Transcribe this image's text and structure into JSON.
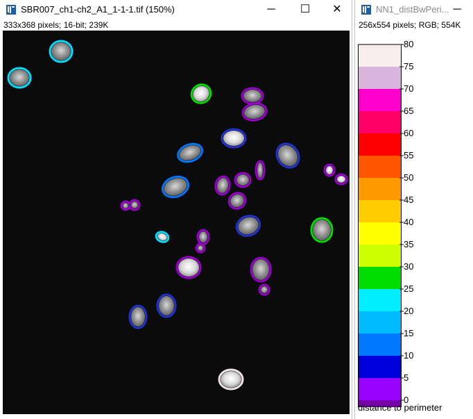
{
  "window_main": {
    "title": "SBR007_ch1-ch2_A1_1-1-1.tif (150%)",
    "info": "333x368 pixels; 16-bit; 239K",
    "controls": {
      "minimize": "─",
      "maximize": "☐",
      "close": "✕"
    },
    "icon": "imagej-icon"
  },
  "window_scale": {
    "title": "NN1_distBwPeri...",
    "info": "256x554 pixels; RGB; 554K",
    "controls": {
      "minimize": "─"
    },
    "icon": "imagej-icon",
    "caption": "distance to perimeter"
  },
  "colorbar": {
    "ticks": [
      "80",
      "75",
      "70",
      "65",
      "60",
      "55",
      "50",
      "45",
      "40",
      "35",
      "30",
      "25",
      "20",
      "15",
      "10",
      "5",
      "0"
    ],
    "bands": [
      "#f8eeee",
      "#d9b4dc",
      "#ff00cc",
      "#ff0066",
      "#ff0000",
      "#ff5500",
      "#ff9900",
      "#ffcc00",
      "#ffff00",
      "#ccff00",
      "#00dd00",
      "#00eeff",
      "#00bbff",
      "#0077ff",
      "#0000dd",
      "#9900ff",
      "#7700aa"
    ]
  },
  "nuclei": [
    {
      "color": "#00ddff"
    },
    {
      "color": "#00ddff"
    },
    {
      "color": "#00dd00"
    },
    {
      "color": "#9900cc"
    },
    {
      "color": "#9900cc"
    },
    {
      "color": "#2233cc"
    },
    {
      "color": "#0077ff"
    },
    {
      "color": "#2233cc"
    },
    {
      "color": "#0077ff"
    },
    {
      "color": "#9900cc"
    },
    {
      "color": "#9900cc"
    },
    {
      "color": "#9900cc"
    },
    {
      "color": "#9900cc"
    },
    {
      "color": "#9900cc"
    },
    {
      "color": "#9900cc"
    },
    {
      "color": "#9900cc"
    },
    {
      "color": "#9900cc"
    },
    {
      "color": "#2233cc"
    },
    {
      "color": "#00dd00"
    },
    {
      "color": "#00ddff"
    },
    {
      "color": "#9900cc"
    },
    {
      "color": "#9900cc"
    },
    {
      "color": "#9900cc"
    },
    {
      "color": "#9900cc"
    },
    {
      "color": "#9900cc"
    },
    {
      "color": "#2233cc"
    },
    {
      "color": "#2233cc"
    },
    {
      "color": "#f0e6e6"
    }
  ]
}
